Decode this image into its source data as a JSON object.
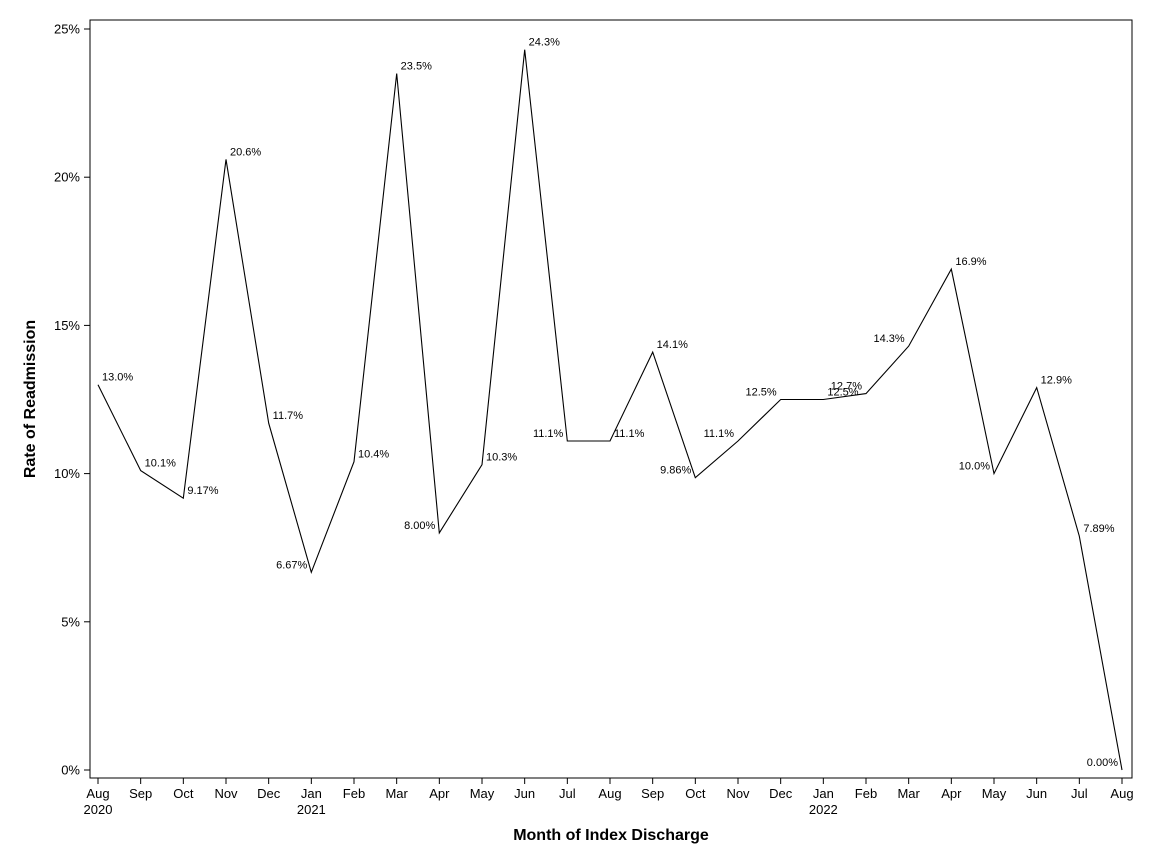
{
  "chart_data": {
    "type": "line",
    "title": "",
    "xlabel": "Month of Index Discharge",
    "ylabel": "Rate of Readmission",
    "ylim": [
      0,
      25
    ],
    "yticks": [
      0,
      5,
      10,
      15,
      20,
      25
    ],
    "ytick_labels": [
      "0%",
      "5%",
      "10%",
      "15%",
      "20%",
      "25%"
    ],
    "grid": false,
    "categories": [
      "Aug",
      "Sep",
      "Oct",
      "Nov",
      "Dec",
      "Jan",
      "Feb",
      "Mar",
      "Apr",
      "May",
      "Jun",
      "Jul",
      "Aug",
      "Sep",
      "Oct",
      "Nov",
      "Dec",
      "Jan",
      "Feb",
      "Mar",
      "Apr",
      "May",
      "Jun",
      "Jul",
      "Aug"
    ],
    "year_labels": [
      "2020",
      "",
      "",
      "",
      "",
      "2021",
      "",
      "",
      "",
      "",
      "",
      "",
      "",
      "",
      "",
      "",
      "",
      "2022",
      "",
      "",
      "",
      "",
      "",
      "",
      ""
    ],
    "values": [
      13.0,
      10.1,
      9.17,
      20.6,
      11.7,
      6.67,
      10.4,
      23.5,
      8.0,
      10.3,
      24.3,
      11.1,
      11.1,
      14.1,
      9.86,
      11.1,
      12.5,
      12.5,
      12.7,
      14.3,
      16.9,
      10.0,
      12.9,
      7.89,
      0.0
    ],
    "labels": [
      "13.0%",
      "10.1%",
      "9.17%",
      "20.6%",
      "11.7%",
      "6.67%",
      "10.4%",
      "23.5%",
      "8.00%",
      "10.3%",
      "24.3%",
      "11.1%",
      "11.1%",
      "14.1%",
      "9.86%",
      "11.1%",
      "12.5%",
      "12.5%",
      "12.7%",
      "14.3%",
      "16.9%",
      "10.0%",
      "12.9%",
      "7.89%",
      "0.00%"
    ],
    "label_side": [
      "right",
      "right",
      "right",
      "right",
      "right",
      "left",
      "right",
      "right",
      "left",
      "right",
      "right",
      "left",
      "right",
      "right",
      "left",
      "left",
      "left",
      "right",
      "left",
      "left",
      "right",
      "left",
      "right",
      "right",
      "left"
    ],
    "colors": {
      "line": "#000000",
      "axis": "#000000",
      "background": "#ffffff"
    }
  }
}
